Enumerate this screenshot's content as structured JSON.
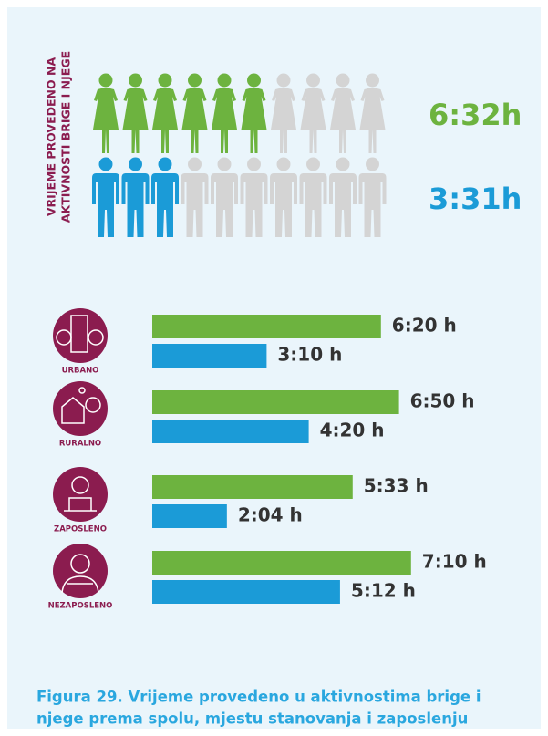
{
  "heading_lines": [
    "VRIJEME PROVEDENO NA",
    "AKTIVNOSTI BRIGE I NJEGE"
  ],
  "colors": {
    "women": "#6db33f",
    "men": "#1b9bd7",
    "empty": "#d4d4d4",
    "accent": "#8b1c4f"
  },
  "pictogram": {
    "total": 10,
    "rows": [
      {
        "kind": "women",
        "filled": 6,
        "label": "6:32h"
      },
      {
        "kind": "men",
        "filled": 3,
        "label": "3:31h"
      }
    ]
  },
  "groups": [
    {
      "label": "URBANO",
      "bars": [
        {
          "kind": "women",
          "value": 380,
          "label": "6:20 h"
        },
        {
          "kind": "men",
          "value": 190,
          "label": "3:10 h"
        }
      ]
    },
    {
      "label": "RURALNO",
      "bars": [
        {
          "kind": "women",
          "value": 410,
          "label": "6:50 h"
        },
        {
          "kind": "men",
          "value": 260,
          "label": "4:20 h"
        }
      ]
    },
    {
      "label": "ZAPOSLENO",
      "bars": [
        {
          "kind": "women",
          "value": 333,
          "label": "5:33 h"
        },
        {
          "kind": "men",
          "value": 124,
          "label": "2:04 h"
        }
      ]
    },
    {
      "label": "NEZAPOSLENO",
      "bars": [
        {
          "kind": "women",
          "value": 430,
          "label": "7:10 h"
        },
        {
          "kind": "men",
          "value": 312,
          "label": "5:12 h"
        }
      ]
    }
  ],
  "caption_lines": [
    "Figura 29. Vrijeme provedeno u aktivnostima brige i",
    "njege prema spolu, mjestu stanovanja i zaposlenju"
  ]
}
